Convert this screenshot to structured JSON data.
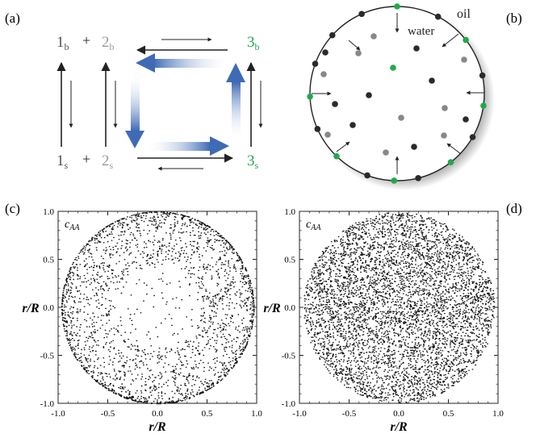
{
  "panel_labels": {
    "a": "(a)",
    "b": "(b)",
    "c": "(c)",
    "d": "(d)"
  },
  "cycle": {
    "top_left": {
      "num": "1",
      "sub": "b"
    },
    "plus_top": "+",
    "top_mid": {
      "num": "2",
      "sub": "b"
    },
    "top_right": {
      "num": "3",
      "sub": "b"
    },
    "bot_left": {
      "num": "1",
      "sub": "s"
    },
    "plus_bot": "+",
    "bot_mid": {
      "num": "2",
      "sub": "s"
    },
    "bot_right": {
      "num": "3",
      "sub": "s"
    }
  },
  "droplet": {
    "oil": "oil",
    "water": "water"
  },
  "plots": [
    {
      "id": "c",
      "label": "c",
      "label_sub": "AA",
      "ylabel": "r/R",
      "xlabel": "r/R",
      "xticks": [
        "-1.0",
        "-0.5",
        "0.0",
        "0.5",
        "1.0"
      ],
      "yticks": [
        "1.0",
        "0.5",
        "0.0",
        "-0.5",
        "-1.0"
      ]
    },
    {
      "id": "d",
      "label": "c",
      "label_sub": "AA",
      "ylabel": "r/R",
      "xlabel": "r/R",
      "xticks": [
        "-1.0",
        "-0.5",
        "0.0",
        "0.5",
        "1.0"
      ],
      "yticks": [
        "1.0",
        "0.5",
        "0.0",
        "-0.5",
        "-1.0"
      ]
    }
  ],
  "colors": {
    "green": "#22a84a",
    "gray": "#888888",
    "dark": "#2a2a2a",
    "blue": "#3f6bb5"
  }
}
